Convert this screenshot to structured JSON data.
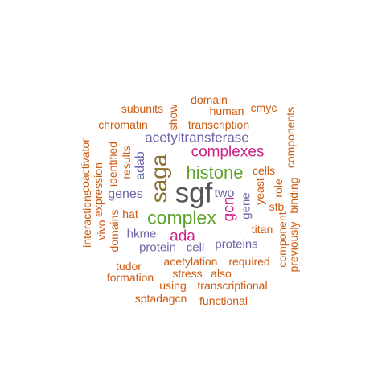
{
  "palette": {
    "gray": "#555555",
    "brown": "#8a7333",
    "green": "#5fa22a",
    "pink": "#d01f86",
    "purple": "#6e66a8",
    "orange": "#cc5a10"
  },
  "words": [
    {
      "text": "sgf",
      "color": "gray",
      "rotated": false
    },
    {
      "text": "saga",
      "color": "brown",
      "rotated": true
    },
    {
      "text": "complex",
      "color": "green",
      "rotated": false
    },
    {
      "text": "histone",
      "color": "green",
      "rotated": false
    },
    {
      "text": "complexes",
      "color": "pink",
      "rotated": false
    },
    {
      "text": "ada",
      "color": "pink",
      "rotated": false
    },
    {
      "text": "gcn",
      "color": "pink",
      "rotated": true
    },
    {
      "text": "acetyltransferase",
      "color": "purple",
      "rotated": false
    },
    {
      "text": "adab",
      "color": "purple",
      "rotated": true
    },
    {
      "text": "genes",
      "color": "purple",
      "rotated": false
    },
    {
      "text": "two",
      "color": "purple",
      "rotated": false
    },
    {
      "text": "hkme",
      "color": "purple",
      "rotated": false
    },
    {
      "text": "protein",
      "color": "purple",
      "rotated": false
    },
    {
      "text": "cell",
      "color": "purple",
      "rotated": false
    },
    {
      "text": "proteins",
      "color": "purple",
      "rotated": false
    },
    {
      "text": "gene",
      "color": "purple",
      "rotated": true
    },
    {
      "text": "domain",
      "color": "orange",
      "rotated": false
    },
    {
      "text": "subunits",
      "color": "orange",
      "rotated": false
    },
    {
      "text": "human",
      "color": "orange",
      "rotated": false
    },
    {
      "text": "cmyc",
      "color": "orange",
      "rotated": false
    },
    {
      "text": "show",
      "color": "orange",
      "rotated": true
    },
    {
      "text": "chromatin",
      "color": "orange",
      "rotated": false
    },
    {
      "text": "transcription",
      "color": "orange",
      "rotated": false
    },
    {
      "text": "components",
      "color": "orange",
      "rotated": true
    },
    {
      "text": "coactivator",
      "color": "orange",
      "rotated": true
    },
    {
      "text": "identified",
      "color": "orange",
      "rotated": true
    },
    {
      "text": "results",
      "color": "orange",
      "rotated": true
    },
    {
      "text": "cells",
      "color": "orange",
      "rotated": false
    },
    {
      "text": "expression",
      "color": "orange",
      "rotated": true
    },
    {
      "text": "yeast",
      "color": "orange",
      "rotated": true
    },
    {
      "text": "role",
      "color": "orange",
      "rotated": true
    },
    {
      "text": "interactions",
      "color": "orange",
      "rotated": true
    },
    {
      "text": "hat",
      "color": "orange",
      "rotated": false
    },
    {
      "text": "sfb",
      "color": "orange",
      "rotated": false
    },
    {
      "text": "domains",
      "color": "orange",
      "rotated": true
    },
    {
      "text": "vivo",
      "color": "orange",
      "rotated": true
    },
    {
      "text": "titan",
      "color": "orange",
      "rotated": false
    },
    {
      "text": "component",
      "color": "orange",
      "rotated": true
    },
    {
      "text": "previously",
      "color": "orange",
      "rotated": true
    },
    {
      "text": "binding",
      "color": "orange",
      "rotated": true
    },
    {
      "text": "acetylation",
      "color": "orange",
      "rotated": false
    },
    {
      "text": "required",
      "color": "orange",
      "rotated": false
    },
    {
      "text": "tudor",
      "color": "orange",
      "rotated": false
    },
    {
      "text": "stress",
      "color": "orange",
      "rotated": false
    },
    {
      "text": "also",
      "color": "orange",
      "rotated": false
    },
    {
      "text": "formation",
      "color": "orange",
      "rotated": false
    },
    {
      "text": "using",
      "color": "orange",
      "rotated": false
    },
    {
      "text": "transcriptional",
      "color": "orange",
      "rotated": false
    },
    {
      "text": "sptadagcn",
      "color": "orange",
      "rotated": false
    },
    {
      "text": "functional",
      "color": "orange",
      "rotated": false
    }
  ]
}
